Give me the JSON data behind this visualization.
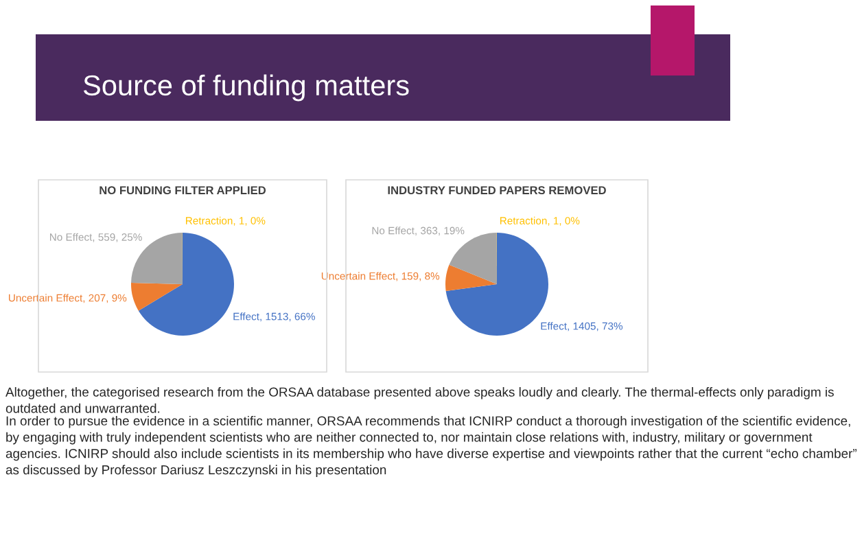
{
  "chart_data": [
    {
      "type": "pie",
      "title": "NO FUNDING FILTER APPLIED",
      "categories": [
        "Effect",
        "Uncertain Effect",
        "No Effect",
        "Retraction"
      ],
      "values": [
        1513,
        207,
        559,
        1
      ],
      "colors": [
        "#4472c4",
        "#ed7d31",
        "#a5a5a5",
        "#ffc000"
      ],
      "value_labels": [
        ", 1513, 66%",
        ", 207, 9%",
        ", 559, 25%",
        ", 1, 0%"
      ],
      "annotations": [
        "Source of funding matters"
      ]
    },
    {
      "type": "pie",
      "title": "INDUSTRY FUNDED PAPERS REMOVED",
      "categories": [
        "Effect",
        "Uncertain Effect",
        "No Effect",
        "Retraction"
      ],
      "values": [
        1405,
        159,
        363,
        1
      ],
      "colors": [
        "#4472c4",
        "#ed7d31",
        "#a5a5a5",
        "#ffc000"
      ],
      "value_labels": [
        ", 1405, 73%",
        ", 159, 8%",
        ", 363, 19%",
        ", 1, 0%"
      ],
      "annotations": [
        "Altogether, the categorised research from the ORSAA database presented above speaks loudly and clearly. The thermal-effects only paradigm is outdated and unwarranted.",
        "In order to pursue the evidence in a scientific manner, ORSAA recommends that ICNIRP conduct a thorough investigation of the scientific evidence, by engaging with truly independent scientists who are neither connected to, nor maintain close relations with, industry, military or government agencies. ICNIRP should also include scientists in its membership who have diverse expertise and viewpoints rather that the current “echo chamber” as discussed by Professor Dariusz Leszczynski in his presentation"
      ]
    }
  ]
}
